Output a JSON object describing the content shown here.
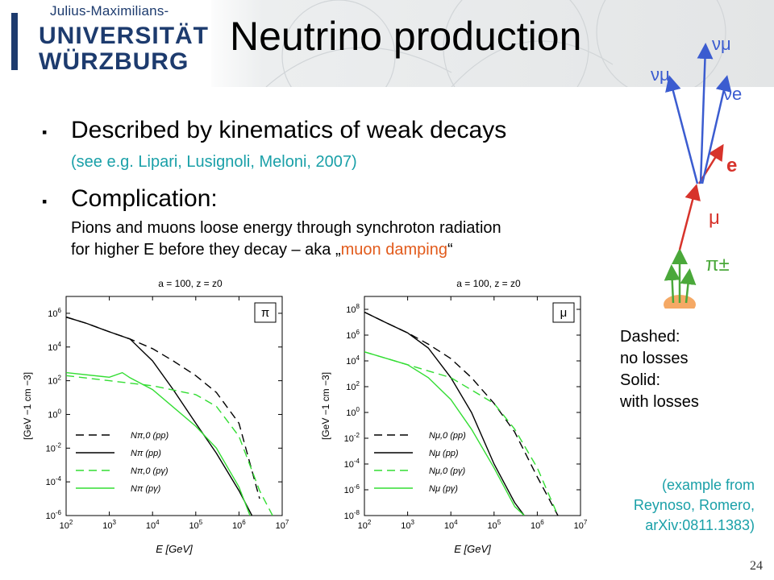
{
  "logo": {
    "line_top": "Julius-Maximilians-",
    "line1": "UNIVERSITÄT",
    "line2": "WÜRZBURG"
  },
  "title": "Neutrino production",
  "bullets": [
    {
      "main": "Described by kinematics of weak decays",
      "sub": "(see e.g. Lipari, Lusignoli, Meloni, 2007)"
    },
    {
      "main": "Complication:",
      "sub_line1": "Pions and muons loose energy through synchroton radiation",
      "sub_line2_pre": "for higher E before they decay – aka „",
      "sub_line2_highlight": "muon damping",
      "sub_line2_post": "“"
    }
  ],
  "diagram": {
    "labels": {
      "nu_mu_top": "νμ",
      "nu_mu_left": "νμ",
      "nu_e": "νe",
      "e": "e",
      "mu": "μ",
      "pi": "π±"
    },
    "colors": {
      "neutrino": "#3b5cd0",
      "electron": "#d7332b",
      "muon": "#d7332b",
      "pion": "#4aa83a"
    }
  },
  "note": {
    "line1": "Dashed:",
    "line2": "no losses",
    "line3": "Solid:",
    "line4": "with losses"
  },
  "example": {
    "line1": "(example from",
    "line2": "Reynoso,  Romero,",
    "line3": "arXiv:0811.1383)"
  },
  "page_number": "24",
  "chart_data": [
    {
      "type": "line",
      "title": "a = 100,  z = z0",
      "panel_label": "π",
      "xlabel": "E [GeV]",
      "ylabel": "[GeV −1 cm −3]",
      "xscale": "log",
      "yscale": "log",
      "xlim": [
        100,
        10000000
      ],
      "ylim": [
        1e-06,
        10000000
      ],
      "xticks": [
        "10^2",
        "10^3",
        "10^4",
        "10^5",
        "10^6",
        "10^7"
      ],
      "yticks": [
        "10^-6",
        "10^-4",
        "10^-2",
        "10^0",
        "10^2",
        "10^4",
        "10^6"
      ],
      "legend": [
        "Nπ,0 (pp)",
        "Nπ (pp)",
        "Nπ,0 (pγ)",
        "Nπ (pγ)"
      ],
      "series": [
        {
          "name": "Nπ,0 (pp)",
          "style": "dashed",
          "color": "#000000",
          "x": [
            100,
            300,
            1000,
            3000,
            10000,
            30000,
            100000,
            300000,
            1000000,
            3000000
          ],
          "y": [
            600000,
            250000,
            80000,
            30000,
            8000,
            1500,
            200,
            20,
            0.3,
            1e-05
          ]
        },
        {
          "name": "Nπ (pp)",
          "style": "solid",
          "color": "#000000",
          "x": [
            100,
            300,
            1000,
            3000,
            10000,
            30000,
            100000,
            300000,
            1000000,
            2000000
          ],
          "y": [
            600000,
            250000,
            80000,
            30000,
            1500,
            30,
            0.3,
            0.005,
            3e-05,
            1e-06
          ]
        },
        {
          "name": "Nπ,0 (pγ)",
          "style": "dashed",
          "color": "#33dd33",
          "x": [
            100,
            1000,
            10000,
            100000,
            300000,
            1000000,
            3000000,
            6000000
          ],
          "y": [
            200,
            100,
            50,
            15,
            3,
            0.05,
            3e-05,
            1e-06
          ]
        },
        {
          "name": "Nπ (pγ)",
          "style": "solid",
          "color": "#33dd33",
          "x": [
            100,
            1000,
            2000,
            3000,
            10000,
            100000,
            300000,
            1000000,
            1800000
          ],
          "y": [
            300,
            160,
            300,
            150,
            30,
            0.2,
            0.01,
            5e-05,
            1e-06
          ]
        }
      ]
    },
    {
      "type": "line",
      "title": "a = 100,  z = z0",
      "panel_label": "μ",
      "xlabel": "E [GeV]",
      "ylabel": "[GeV −1 cm −3]",
      "xscale": "log",
      "yscale": "log",
      "xlim": [
        100,
        10000000
      ],
      "ylim": [
        1e-08,
        1000000000
      ],
      "xticks": [
        "10^2",
        "10^3",
        "10^4",
        "10^5",
        "10^6",
        "10^7"
      ],
      "yticks": [
        "10^-8",
        "10^-6",
        "10^-4",
        "10^-2",
        "10^0",
        "10^2",
        "10^4",
        "10^6",
        "10^8"
      ],
      "legend": [
        "Nμ,0 (pp)",
        "Nμ (pp)",
        "Nμ,0 (pγ)",
        "Nμ (pγ)"
      ],
      "series": [
        {
          "name": "Nμ,0 (pp)",
          "style": "dashed",
          "color": "#000000",
          "x": [
            100,
            300,
            1000,
            3000,
            10000,
            30000,
            100000,
            300000,
            1000000,
            3000000
          ],
          "y": [
            60000000,
            10000000,
            1500000,
            200000,
            15000,
            500,
            5,
            0.03,
            1e-05,
            1e-08
          ]
        },
        {
          "name": "Nμ (pp)",
          "style": "solid",
          "color": "#000000",
          "x": [
            100,
            300,
            1000,
            3000,
            10000,
            30000,
            100000,
            300000,
            500000
          ],
          "y": [
            60000000,
            10000000,
            1500000,
            100000,
            500,
            1,
            0.0001,
            1e-07,
            1e-08
          ]
        },
        {
          "name": "Nμ,0 (pγ)",
          "style": "dashed",
          "color": "#33dd33",
          "x": [
            100,
            1000,
            10000,
            100000,
            300000,
            1000000,
            3000000
          ],
          "y": [
            50000,
            5000,
            500,
            5,
            0.05,
            5e-05,
            1e-08
          ]
        },
        {
          "name": "Nμ (pγ)",
          "style": "solid",
          "color": "#33dd33",
          "x": [
            100,
            1000,
            3000,
            10000,
            30000,
            100000,
            300000,
            500000
          ],
          "y": [
            50000,
            5000,
            500,
            10,
            0.05,
            5e-05,
            5e-08,
            1e-08
          ]
        }
      ]
    }
  ]
}
